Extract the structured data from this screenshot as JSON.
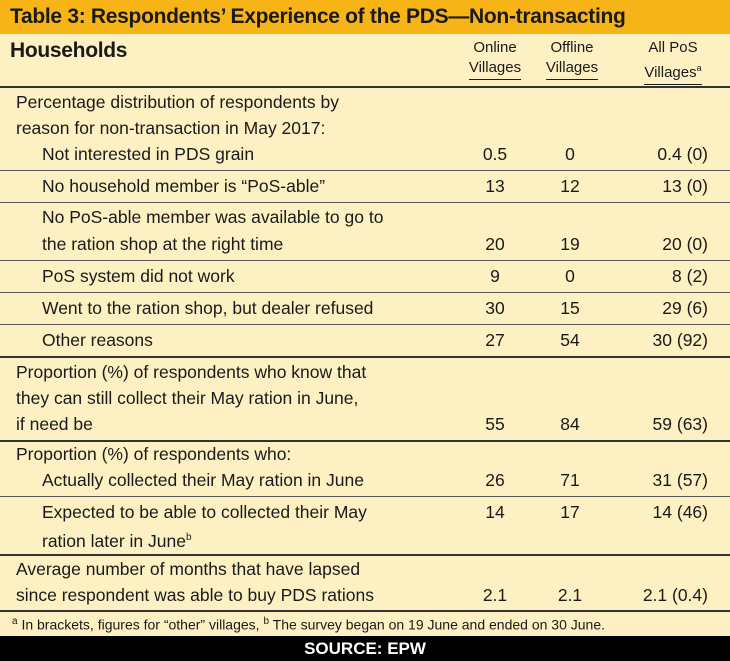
{
  "title": "Table 3: Respondents’ Experience of the PDS—Non-transacting Households",
  "columns": {
    "c1": [
      "Online",
      "Villages"
    ],
    "c2": [
      "Offline",
      "Villages"
    ],
    "c3": [
      "All PoS",
      "Villages"
    ],
    "c3_sup": "a"
  },
  "section1": {
    "heading": [
      "Percentage distribution of respondents by",
      "reason for non-transaction in May 2017:"
    ],
    "rows": [
      {
        "label": [
          "Not interested in PDS grain"
        ],
        "v1": "0.5",
        "v2": "0",
        "v3": "0.4 (0)"
      },
      {
        "label": [
          "No household member is “PoS-able”"
        ],
        "v1": "13",
        "v2": "12",
        "v3": "13 (0)"
      },
      {
        "label": [
          "No PoS-able member was available to go to",
          "the ration shop at the right time"
        ],
        "v1": "20",
        "v2": "19",
        "v3": "20 (0)"
      },
      {
        "label": [
          "PoS system did not work"
        ],
        "v1": "9",
        "v2": "0",
        "v3": "8 (2)"
      },
      {
        "label": [
          "Went to the ration shop, but dealer refused"
        ],
        "v1": "30",
        "v2": "15",
        "v3": "29 (6)"
      },
      {
        "label": [
          "Other reasons"
        ],
        "v1": "27",
        "v2": "54",
        "v3": "30 (92)"
      }
    ]
  },
  "section2": {
    "label": [
      "Proportion (%) of respondents who know that",
      "they can still collect their May ration in June,",
      "if need be"
    ],
    "v1": "55",
    "v2": "84",
    "v3": "59 (63)"
  },
  "section3": {
    "heading": "Proportion (%) of respondents who:",
    "rows": [
      {
        "label": [
          "Actually collected their May ration in June"
        ],
        "v1": "26",
        "v2": "71",
        "v3": "31 (57)"
      },
      {
        "label": [
          "Expected to be able to collected their May",
          "ration later in June"
        ],
        "sup": "b",
        "v1": "14",
        "v2": "17",
        "v3": "14 (46)"
      }
    ]
  },
  "section4": {
    "label": [
      "Average number of months that have lapsed",
      "since respondent was able to buy PDS rations"
    ],
    "v1": "2.1",
    "v2": "2.1",
    "v3": "2.1 (0.4)"
  },
  "footnote": {
    "a_mark": "a",
    "a_text": " In brackets, figures for “other” villages, ",
    "b_mark": "b",
    "b_text": " The survey began on 19 June and ended on 30 June."
  },
  "source": "SOURCE: EPW",
  "colors": {
    "header_bg": "#f6b417",
    "body_bg": "#fdf0c2",
    "source_bg": "#000000"
  }
}
